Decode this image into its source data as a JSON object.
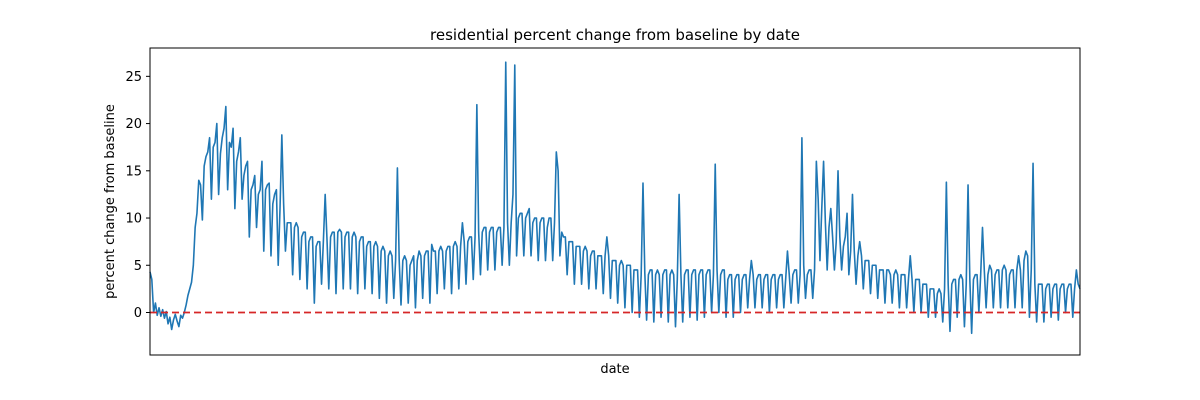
{
  "chart_data": {
    "type": "line",
    "title": "residential percent change from baseline by date",
    "xlabel": "date",
    "ylabel": "percent change from baseline",
    "ylim": [
      -4.5,
      28
    ],
    "yticks": [
      0,
      5,
      10,
      15,
      20,
      25
    ],
    "xticks": [],
    "grid": false,
    "baseline": {
      "value": 0,
      "color": "#d62728",
      "style": "dashed"
    },
    "line_color": "#1f77b4",
    "series": [
      {
        "x_count": 1000,
        "values": [
          4.3,
          3.5,
          0.0,
          1.0,
          -0.3,
          0.5,
          -0.4,
          0.3,
          -0.6,
          0.1,
          -1.2,
          -0.5,
          -1.8,
          -0.8,
          -0.2,
          -0.9,
          -1.5,
          -0.3,
          -0.6,
          0.0,
          0.8,
          1.8,
          2.5,
          3.2,
          5.0,
          9.0,
          10.5,
          14.0,
          13.5,
          9.8,
          15.5,
          16.5,
          17.0,
          18.5,
          12.0,
          17.5,
          18.0,
          20.0,
          12.5,
          16.8,
          18.5,
          19.5,
          21.8,
          13.0,
          18.0,
          17.5,
          19.5,
          11.0,
          16.0,
          17.0,
          18.5,
          12.0,
          14.5,
          15.5,
          16.0,
          8.0,
          13.0,
          13.5,
          14.5,
          9.0,
          12.5,
          13.0,
          16.0,
          6.5,
          13.0,
          13.5,
          13.7,
          6.0,
          11.5,
          12.5,
          13.0,
          5.0,
          11.0,
          18.8,
          11.5,
          6.5,
          9.5,
          9.5,
          9.5,
          4.0,
          9.0,
          9.5,
          9.0,
          3.5,
          8.0,
          8.5,
          8.5,
          2.5,
          7.5,
          8.0,
          8.0,
          1.0,
          7.0,
          7.5,
          7.5,
          3.0,
          7.5,
          12.5,
          7.8,
          2.5,
          8.0,
          8.5,
          8.5,
          2.0,
          8.5,
          8.8,
          8.5,
          2.5,
          8.0,
          8.5,
          8.5,
          2.5,
          8.0,
          8.5,
          8.0,
          2.0,
          7.5,
          8.0,
          8.0,
          2.5,
          7.0,
          7.5,
          7.5,
          2.0,
          7.0,
          7.5,
          7.0,
          1.5,
          6.5,
          7.0,
          6.5,
          1.0,
          6.0,
          6.5,
          6.0,
          1.5,
          5.5,
          15.3,
          5.5,
          0.8,
          5.5,
          6.0,
          5.5,
          1.0,
          5.0,
          5.5,
          6.0,
          0.5,
          5.5,
          6.5,
          6.0,
          1.5,
          6.0,
          6.5,
          6.5,
          1.0,
          7.2,
          6.5,
          6.5,
          2.0,
          6.5,
          7.0,
          6.5,
          2.5,
          6.5,
          7.0,
          7.0,
          2.0,
          7.0,
          7.5,
          7.0,
          2.5,
          7.0,
          9.5,
          7.5,
          3.0,
          7.5,
          8.0,
          8.0,
          3.5,
          8.0,
          22.0,
          8.5,
          4.0,
          8.5,
          9.0,
          9.0,
          4.5,
          8.5,
          9.0,
          9.0,
          4.5,
          8.5,
          9.0,
          9.0,
          5.0,
          9.0,
          26.5,
          9.5,
          5.0,
          9.5,
          12.5,
          26.2,
          6.0,
          10.0,
          10.5,
          10.5,
          6.0,
          10.0,
          10.5,
          11.0,
          6.0,
          9.5,
          10.0,
          10.0,
          5.5,
          9.5,
          10.0,
          10.0,
          5.5,
          9.0,
          10.0,
          10.0,
          5.5,
          9.5,
          17.0,
          15.0,
          6.0,
          8.5,
          8.0,
          8.0,
          4.0,
          7.5,
          7.5,
          7.5,
          3.0,
          7.0,
          7.0,
          7.0,
          3.0,
          6.5,
          7.0,
          6.5,
          2.5,
          6.0,
          6.5,
          6.5,
          2.5,
          6.0,
          6.0,
          6.0,
          2.0,
          6.0,
          8.0,
          6.0,
          1.5,
          5.5,
          5.5,
          5.5,
          1.0,
          5.0,
          5.5,
          5.0,
          0.5,
          5.0,
          5.0,
          5.0,
          0.0,
          4.5,
          4.5,
          4.5,
          -0.5,
          4.0,
          13.7,
          4.2,
          -0.8,
          4.0,
          4.5,
          4.5,
          -1.0,
          4.0,
          4.5,
          4.0,
          -0.5,
          4.0,
          4.5,
          4.5,
          -1.0,
          4.0,
          4.5,
          4.0,
          -1.5,
          3.5,
          12.5,
          4.0,
          -1.0,
          4.0,
          4.5,
          4.5,
          -0.5,
          4.0,
          4.5,
          4.5,
          -0.8,
          4.0,
          4.5,
          4.5,
          -0.5,
          4.0,
          4.5,
          4.5,
          0.0,
          4.0,
          15.7,
          4.5,
          0.0,
          4.0,
          4.5,
          4.5,
          -0.5,
          3.5,
          4.0,
          4.0,
          -0.5,
          3.5,
          4.0,
          4.0,
          0.0,
          3.5,
          4.0,
          4.0,
          0.5,
          3.5,
          5.5,
          4.0,
          0.5,
          3.5,
          4.0,
          4.0,
          0.5,
          3.5,
          4.0,
          4.0,
          0.0,
          3.5,
          4.0,
          4.0,
          0.5,
          3.5,
          4.0,
          4.0,
          0.5,
          3.5,
          6.5,
          4.0,
          1.0,
          4.0,
          4.5,
          4.5,
          1.0,
          4.0,
          18.5,
          5.0,
          1.5,
          4.0,
          4.5,
          4.5,
          1.5,
          4.5,
          16.0,
          12.0,
          5.5,
          11.0,
          16.0,
          9.5,
          4.5,
          9.0,
          11.0,
          8.0,
          4.5,
          7.5,
          15.0,
          8.0,
          4.5,
          7.0,
          8.0,
          10.5,
          4.0,
          6.5,
          12.5,
          6.5,
          3.0,
          6.0,
          7.5,
          6.0,
          2.5,
          5.5,
          5.5,
          5.5,
          2.0,
          5.0,
          5.0,
          5.0,
          1.5,
          4.5,
          4.5,
          4.5,
          1.0,
          4.5,
          4.5,
          4.0,
          1.0,
          4.0,
          4.5,
          4.0,
          0.5,
          4.0,
          4.0,
          4.0,
          0.5,
          3.5,
          6.0,
          3.5,
          0.0,
          3.5,
          3.5,
          3.5,
          0.0,
          3.0,
          3.0,
          3.0,
          -0.5,
          2.5,
          2.5,
          2.5,
          -0.5,
          2.0,
          2.5,
          2.0,
          -1.0,
          2.5,
          13.8,
          3.0,
          -2.0,
          3.0,
          3.5,
          3.5,
          -0.5,
          3.5,
          4.0,
          3.5,
          -1.5,
          3.0,
          13.5,
          3.5,
          -2.2,
          3.5,
          4.0,
          4.0,
          0.0,
          4.0,
          9.0,
          4.5,
          0.5,
          4.0,
          5.0,
          4.5,
          0.5,
          4.0,
          4.5,
          4.5,
          0.5,
          4.5,
          5.0,
          4.5,
          0.5,
          4.0,
          4.5,
          4.5,
          0.5,
          4.5,
          6.0,
          4.5,
          0.5,
          5.5,
          6.5,
          6.0,
          -0.5,
          4.5,
          15.8,
          3.0,
          -1.0,
          3.0,
          3.0,
          3.0,
          -1.0,
          2.5,
          3.0,
          3.0,
          -0.5,
          2.5,
          3.0,
          3.0,
          -0.8,
          2.5,
          3.0,
          3.0,
          0.0,
          2.5,
          3.0,
          3.0,
          -0.5,
          2.5,
          4.5,
          3.0,
          2.5
        ]
      }
    ]
  }
}
